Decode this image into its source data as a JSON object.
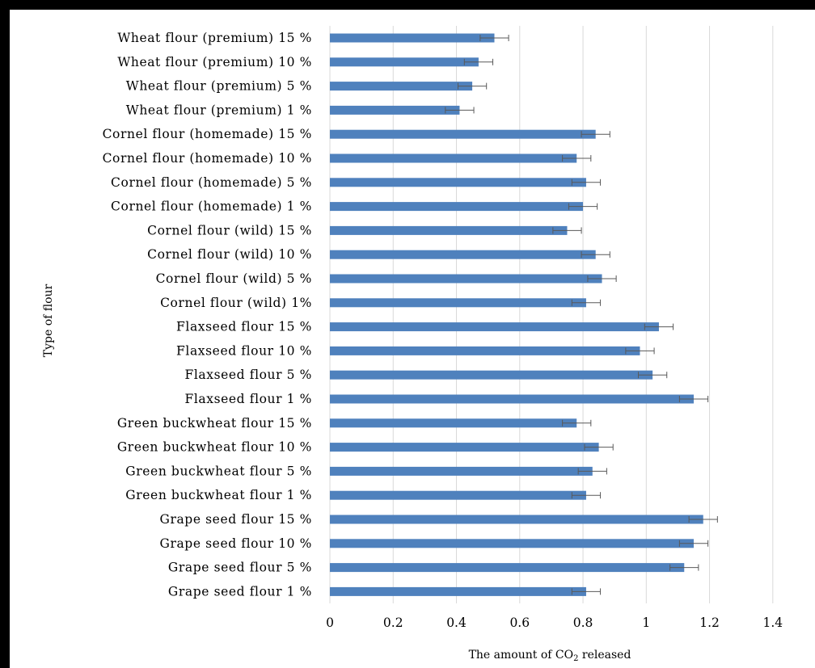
{
  "chart_data": {
    "type": "bar",
    "orientation": "horizontal",
    "xlabel_parts": [
      "The amount of CO",
      "2",
      " released"
    ],
    "ylabel": "Type of flour",
    "xlim": [
      0,
      1.4
    ],
    "xticks": [
      "0",
      "0.2",
      "0.4",
      "0.6",
      "0.8",
      "1",
      "1.2",
      "1.4"
    ],
    "grid": true,
    "colors": {
      "bar": "#4f81bd",
      "error_bar": "#595959",
      "grid": "#d9d9d9"
    },
    "categories": [
      "Wheat flour (premium) 15 %",
      "Wheat flour (premium) 10 %",
      "Wheat flour (premium) 5 %",
      "Wheat flour (premium) 1 %",
      "Cornel flour (homemade) 15 %",
      "Cornel flour (homemade) 10 %",
      "Cornel flour (homemade) 5 %",
      "Cornel flour (homemade) 1 %",
      "Cornel flour (wild) 15 %",
      "Cornel flour (wild) 10 %",
      "Cornel flour (wild) 5 %",
      "Cornel flour (wild) 1%",
      "Flaxseed flour 15 %",
      "Flaxseed flour 10 %",
      "Flaxseed flour 5 %",
      "Flaxseed flour 1 %",
      "Green buckwheat flour 15 %",
      "Green buckwheat flour 10 %",
      "Green buckwheat flour 5 %",
      "Green buckwheat flour 1 %",
      "Grape seed flour 15 %",
      "Grape seed flour 10 %",
      "Grape seed flour 5 %",
      "Grape seed flour 1 %"
    ],
    "values": [
      0.52,
      0.47,
      0.45,
      0.41,
      0.84,
      0.78,
      0.81,
      0.8,
      0.75,
      0.84,
      0.86,
      0.81,
      1.04,
      0.98,
      1.02,
      1.15,
      0.78,
      0.85,
      0.83,
      0.81,
      1.18,
      1.15,
      1.12,
      0.81
    ],
    "errors": [
      0.045,
      0.045,
      0.045,
      0.045,
      0.045,
      0.045,
      0.045,
      0.045,
      0.045,
      0.045,
      0.045,
      0.045,
      0.045,
      0.045,
      0.045,
      0.045,
      0.045,
      0.045,
      0.045,
      0.045,
      0.045,
      0.045,
      0.045,
      0.045
    ]
  }
}
